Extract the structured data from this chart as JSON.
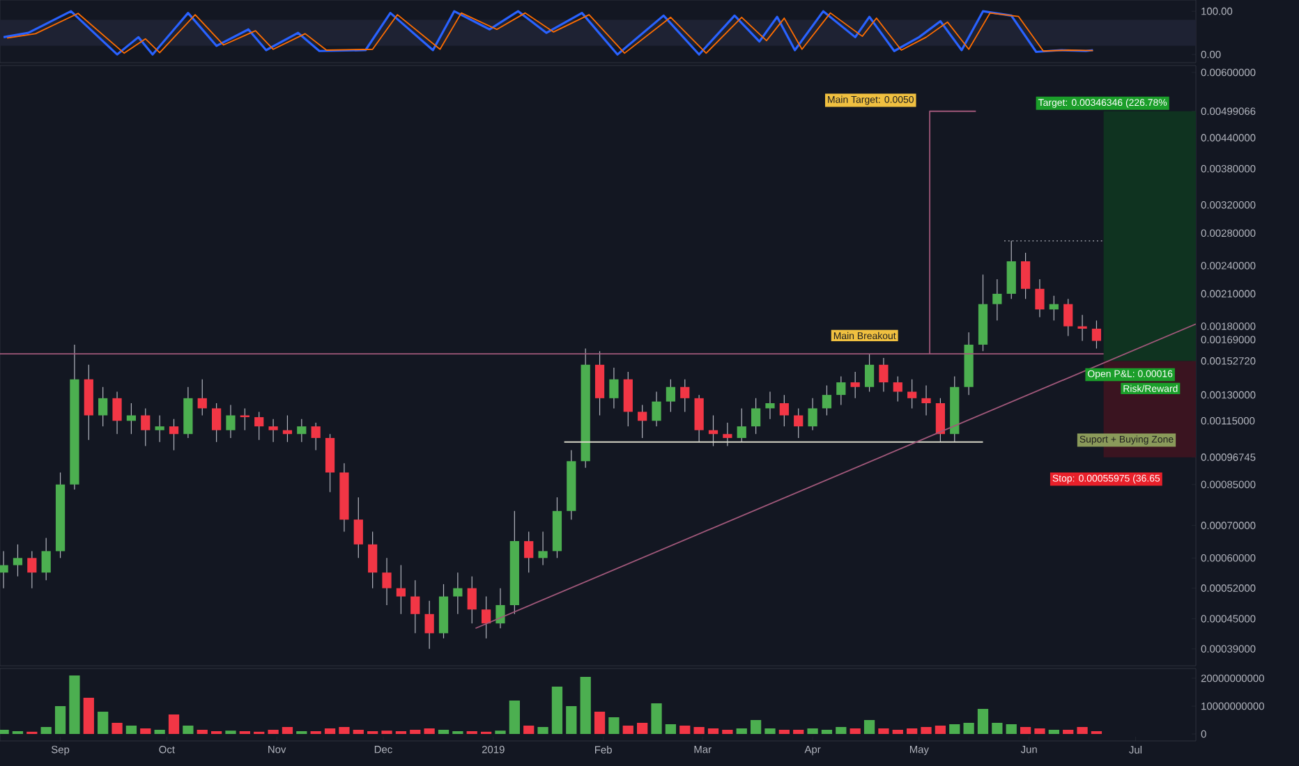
{
  "chart_data": [
    {
      "type": "line",
      "xlim": [
        "2018-08-15",
        "2019-07-18"
      ],
      "ylim": [
        -19,
        126
      ],
      "yticks": [
        {
          "value": 100,
          "label": "100.00"
        },
        {
          "value": 0,
          "label": "0.00"
        }
      ],
      "tick_labels": "y",
      "bands": [
        {
          "axis": "y",
          "from": 20,
          "to": 80,
          "color": "#1e2233"
        }
      ],
      "series": [
        {
          "color": "#2962ff",
          "x": [
            "2018-08-16",
            "2018-08-23",
            "2018-09-04",
            "2018-09-17",
            "2018-09-23",
            "2018-09-27",
            "2018-10-07",
            "2018-10-15",
            "2018-10-24",
            "2018-10-29",
            "2018-11-07",
            "2018-11-13",
            "2018-11-26",
            "2018-12-03",
            "2018-12-15",
            "2018-12-21",
            "2018-12-31",
            "2019-01-08",
            "2019-01-16",
            "2019-01-26",
            "2019-02-05",
            "2019-02-18",
            "2019-02-28",
            "2019-03-10",
            "2019-03-17",
            "2019-03-22",
            "2019-03-27",
            "2019-04-04",
            "2019-04-13",
            "2019-04-17",
            "2019-04-24",
            "2019-05-01",
            "2019-05-07",
            "2019-05-13",
            "2019-05-19",
            "2019-05-27",
            "2019-06-03",
            "2019-06-10",
            "2019-06-17",
            "2019-06-19"
          ],
          "values": [
            40,
            50,
            100,
            0,
            40,
            0,
            96,
            20,
            58,
            10,
            50,
            8,
            10,
            96,
            10,
            100,
            58,
            100,
            50,
            96,
            0,
            90,
            0,
            90,
            30,
            87,
            10,
            100,
            40,
            87,
            8,
            40,
            77,
            10,
            100,
            90,
            6,
            10,
            8,
            10
          ]
        },
        {
          "color": "#ff6d00",
          "x": [
            "2018-08-17",
            "2018-08-25",
            "2018-09-06",
            "2018-09-19",
            "2018-09-25",
            "2018-09-29",
            "2018-10-09",
            "2018-10-17",
            "2018-10-26",
            "2018-10-31",
            "2018-11-09",
            "2018-11-15",
            "2018-11-28",
            "2018-12-05",
            "2018-12-17",
            "2018-12-23",
            "2019-01-02",
            "2019-01-10",
            "2019-01-18",
            "2019-01-28",
            "2019-02-07",
            "2019-02-20",
            "2019-03-02",
            "2019-03-12",
            "2019-03-19",
            "2019-03-24",
            "2019-03-29",
            "2019-04-06",
            "2019-04-15",
            "2019-04-19",
            "2019-04-26",
            "2019-05-03",
            "2019-05-09",
            "2019-05-15",
            "2019-05-21",
            "2019-05-29",
            "2019-06-05",
            "2019-06-12",
            "2019-06-19"
          ],
          "values": [
            38,
            48,
            95,
            3,
            36,
            4,
            92,
            22,
            55,
            12,
            48,
            10,
            12,
            92,
            12,
            96,
            58,
            96,
            52,
            92,
            3,
            86,
            3,
            86,
            32,
            84,
            12,
            96,
            42,
            84,
            10,
            40,
            75,
            12,
            96,
            88,
            8,
            10,
            9
          ]
        }
      ]
    },
    {
      "type": "candlestick",
      "log": true,
      "xlim": [
        "2018-08-15",
        "2019-07-18"
      ],
      "ylim": [
        0.00036,
        0.0062
      ],
      "tick_labels": "y",
      "yticks": [
        {
          "value": 0.006,
          "label": "0.00600000"
        },
        {
          "value": 0.00499066,
          "label": "0.00499066"
        },
        {
          "value": 0.0044,
          "label": "0.00440000"
        },
        {
          "value": 0.0038,
          "label": "0.00380000"
        },
        {
          "value": 0.0032,
          "label": "0.00320000"
        },
        {
          "value": 0.0028,
          "label": "0.00280000"
        },
        {
          "value": 0.0024,
          "label": "0.00240000"
        },
        {
          "value": 0.0021,
          "label": "0.00210000"
        },
        {
          "value": 0.0018,
          "label": "0.00180000"
        },
        {
          "value": 0.00169,
          "label": "0.00169000"
        },
        {
          "value": 0.0015272,
          "label": "0.00152720"
        },
        {
          "value": 0.0013,
          "label": "0.00130000"
        },
        {
          "value": 0.00115,
          "label": "0.00115000"
        },
        {
          "value": 0.00096745,
          "label": "0.00096745"
        },
        {
          "value": 0.00085,
          "label": "0.00085000"
        },
        {
          "value": 0.0007,
          "label": "0.00070000"
        },
        {
          "value": 0.0006,
          "label": "0.00060000"
        },
        {
          "value": 0.00052,
          "label": "0.00052000"
        },
        {
          "value": 0.00045,
          "label": "0.00045000"
        },
        {
          "value": 0.00039,
          "label": "0.00039000"
        }
      ],
      "x": [
        "2018-08-16",
        "2018-08-20",
        "2018-08-24",
        "2018-08-28",
        "2018-09-01",
        "2018-09-05",
        "2018-09-09",
        "2018-09-13",
        "2018-09-17",
        "2018-09-21",
        "2018-09-25",
        "2018-09-29",
        "2018-10-03",
        "2018-10-07",
        "2018-10-11",
        "2018-10-15",
        "2018-10-19",
        "2018-10-23",
        "2018-10-27",
        "2018-10-31",
        "2018-11-04",
        "2018-11-08",
        "2018-11-12",
        "2018-11-16",
        "2018-11-20",
        "2018-11-24",
        "2018-11-28",
        "2018-12-02",
        "2018-12-06",
        "2018-12-10",
        "2018-12-14",
        "2018-12-18",
        "2018-12-22",
        "2018-12-26",
        "2018-12-30",
        "2019-01-03",
        "2019-01-07",
        "2019-01-11",
        "2019-01-15",
        "2019-01-19",
        "2019-01-23",
        "2019-01-27",
        "2019-01-31",
        "2019-02-04",
        "2019-02-08",
        "2019-02-12",
        "2019-02-16",
        "2019-02-20",
        "2019-02-24",
        "2019-02-28",
        "2019-03-04",
        "2019-03-08",
        "2019-03-12",
        "2019-03-16",
        "2019-03-20",
        "2019-03-24",
        "2019-03-28",
        "2019-04-01",
        "2019-04-05",
        "2019-04-09",
        "2019-04-13",
        "2019-04-17",
        "2019-04-21",
        "2019-04-25",
        "2019-04-29",
        "2019-05-03",
        "2019-05-07",
        "2019-05-11",
        "2019-05-15",
        "2019-05-19",
        "2019-05-23",
        "2019-05-27",
        "2019-05-31",
        "2019-06-04",
        "2019-06-08",
        "2019-06-12",
        "2019-06-16",
        "2019-06-20"
      ],
      "ohlc": [
        [
          0.00056,
          0.00062,
          0.00052,
          0.00058
        ],
        [
          0.00058,
          0.00064,
          0.00055,
          0.0006
        ],
        [
          0.0006,
          0.00062,
          0.00052,
          0.00056
        ],
        [
          0.00056,
          0.00066,
          0.00054,
          0.00062
        ],
        [
          0.00062,
          0.0009,
          0.0006,
          0.00085
        ],
        [
          0.00085,
          0.00165,
          0.00083,
          0.0014
        ],
        [
          0.0014,
          0.0015,
          0.00105,
          0.00118
        ],
        [
          0.00118,
          0.00135,
          0.00112,
          0.00128
        ],
        [
          0.00128,
          0.00132,
          0.00108,
          0.00115
        ],
        [
          0.00115,
          0.00125,
          0.00108,
          0.00118
        ],
        [
          0.00118,
          0.00122,
          0.00102,
          0.0011
        ],
        [
          0.0011,
          0.00118,
          0.00104,
          0.00112
        ],
        [
          0.00112,
          0.00116,
          0.001,
          0.00108
        ],
        [
          0.00108,
          0.00135,
          0.00106,
          0.00128
        ],
        [
          0.00128,
          0.0014,
          0.00118,
          0.00122
        ],
        [
          0.00122,
          0.00125,
          0.00104,
          0.0011
        ],
        [
          0.0011,
          0.00124,
          0.00106,
          0.00118
        ],
        [
          0.00118,
          0.00122,
          0.0011,
          0.00117
        ],
        [
          0.00117,
          0.0012,
          0.00105,
          0.00112
        ],
        [
          0.00112,
          0.00116,
          0.00104,
          0.0011
        ],
        [
          0.0011,
          0.00118,
          0.00104,
          0.00108
        ],
        [
          0.00108,
          0.00116,
          0.00104,
          0.00112
        ],
        [
          0.00112,
          0.00114,
          0.001,
          0.00106
        ],
        [
          0.00106,
          0.00108,
          0.00082,
          0.0009
        ],
        [
          0.0009,
          0.00094,
          0.00068,
          0.00072
        ],
        [
          0.00072,
          0.0008,
          0.0006,
          0.00064
        ],
        [
          0.00064,
          0.00068,
          0.00052,
          0.00056
        ],
        [
          0.00056,
          0.0006,
          0.00048,
          0.00052
        ],
        [
          0.00052,
          0.00058,
          0.00046,
          0.0005
        ],
        [
          0.0005,
          0.00054,
          0.00042,
          0.00046
        ],
        [
          0.00046,
          0.00049,
          0.00039,
          0.00042
        ],
        [
          0.00042,
          0.00053,
          0.00041,
          0.0005
        ],
        [
          0.0005,
          0.00056,
          0.00046,
          0.00052
        ],
        [
          0.00052,
          0.00055,
          0.00044,
          0.00047
        ],
        [
          0.00047,
          0.0005,
          0.00041,
          0.00044
        ],
        [
          0.00044,
          0.00052,
          0.00043,
          0.00048
        ],
        [
          0.00048,
          0.00075,
          0.00046,
          0.00065
        ],
        [
          0.00065,
          0.00068,
          0.00056,
          0.0006
        ],
        [
          0.0006,
          0.00068,
          0.00058,
          0.00062
        ],
        [
          0.00062,
          0.0008,
          0.0006,
          0.00075
        ],
        [
          0.00075,
          0.001,
          0.00072,
          0.00095
        ],
        [
          0.00095,
          0.00162,
          0.00092,
          0.0015
        ],
        [
          0.0015,
          0.0016,
          0.00118,
          0.00128
        ],
        [
          0.00128,
          0.00148,
          0.00122,
          0.0014
        ],
        [
          0.0014,
          0.00145,
          0.00112,
          0.0012
        ],
        [
          0.0012,
          0.00124,
          0.00106,
          0.00115
        ],
        [
          0.00115,
          0.00132,
          0.00112,
          0.00126
        ],
        [
          0.00126,
          0.0014,
          0.0012,
          0.00135
        ],
        [
          0.00135,
          0.0014,
          0.0012,
          0.00128
        ],
        [
          0.00128,
          0.0013,
          0.00104,
          0.0011
        ],
        [
          0.0011,
          0.00118,
          0.00102,
          0.00108
        ],
        [
          0.00108,
          0.00114,
          0.00102,
          0.00106
        ],
        [
          0.00106,
          0.00122,
          0.00104,
          0.00112
        ],
        [
          0.00112,
          0.00128,
          0.00108,
          0.00122
        ],
        [
          0.00122,
          0.00132,
          0.00116,
          0.00125
        ],
        [
          0.00125,
          0.0013,
          0.00112,
          0.00118
        ],
        [
          0.00118,
          0.00122,
          0.00106,
          0.00112
        ],
        [
          0.00112,
          0.00128,
          0.0011,
          0.00122
        ],
        [
          0.00122,
          0.00136,
          0.00118,
          0.0013
        ],
        [
          0.0013,
          0.00142,
          0.00124,
          0.00138
        ],
        [
          0.00138,
          0.00145,
          0.00128,
          0.00135
        ],
        [
          0.00135,
          0.00158,
          0.00132,
          0.0015
        ],
        [
          0.0015,
          0.00155,
          0.00132,
          0.00138
        ],
        [
          0.00138,
          0.00142,
          0.00126,
          0.00132
        ],
        [
          0.00132,
          0.0014,
          0.00122,
          0.00128
        ],
        [
          0.00128,
          0.00136,
          0.00118,
          0.00125
        ],
        [
          0.00125,
          0.00128,
          0.00104,
          0.00108
        ],
        [
          0.00108,
          0.00142,
          0.00104,
          0.00135
        ],
        [
          0.00135,
          0.00175,
          0.0013,
          0.00165
        ],
        [
          0.00165,
          0.0023,
          0.0016,
          0.002
        ],
        [
          0.002,
          0.00225,
          0.00185,
          0.0021
        ],
        [
          0.0021,
          0.0027,
          0.00205,
          0.00245
        ],
        [
          0.00245,
          0.00255,
          0.00205,
          0.00215
        ],
        [
          0.00215,
          0.00225,
          0.00188,
          0.00195
        ],
        [
          0.00195,
          0.00208,
          0.00185,
          0.002
        ],
        [
          0.002,
          0.00205,
          0.00172,
          0.0018
        ],
        [
          0.0018,
          0.0019,
          0.00168,
          0.00178
        ],
        [
          0.00178,
          0.00185,
          0.00162,
          0.00168
        ]
      ],
      "series": [
        {
          "type": "line",
          "color": "#a0587a",
          "x": [
            "2018-08-15",
            "2019-06-22"
          ],
          "values": [
            0.00158,
            0.00158
          ]
        },
        {
          "type": "line",
          "color": "#d8d8c8",
          "x": [
            "2019-01-21",
            "2019-05-19"
          ],
          "values": [
            0.00104,
            0.00104
          ]
        },
        {
          "type": "line",
          "color": "#a0587a",
          "x": [
            "2018-12-27",
            "2019-07-18"
          ],
          "values": [
            0.00043,
            0.00182
          ]
        },
        {
          "type": "line",
          "color": "#a0587a",
          "x": [
            "2019-05-04",
            "2019-05-04",
            "2019-05-17"
          ],
          "values": [
            0.00158,
            0.00499,
            0.00499
          ]
        },
        {
          "type": "line",
          "color": "#8a8d96",
          "line_style": "dotted",
          "x": [
            "2019-05-25",
            "2019-06-22"
          ],
          "values": [
            0.0027,
            0.0027
          ]
        }
      ],
      "bands": [
        {
          "axis": "y",
          "from": 0.0015272,
          "to": 0.00499066,
          "color": "#0f3320"
        },
        {
          "axis": "y",
          "from": 0.00096745,
          "to": 0.0015272,
          "color": "#3a1420"
        }
      ],
      "annotations": [
        "Main Target: 0.0050",
        "Main Breakout",
        "Target: 0.00346346 (226.78%",
        "Open P&L: 0.00016",
        "Risk/Reward",
        "Suport + Buying Zone",
        "Stop: 0.00055975 (36.65"
      ]
    },
    {
      "type": "bar",
      "xlim": [
        "2018-08-15",
        "2019-07-18"
      ],
      "ylim": [
        -2500000000,
        23500000000
      ],
      "yticks": [
        20000000000,
        10000000000,
        0
      ],
      "xticks": [
        {
          "value": "2018-09-01",
          "label": "Sep"
        },
        {
          "value": "2018-10-01",
          "label": "Oct"
        },
        {
          "value": "2018-11-01",
          "label": "Nov"
        },
        {
          "value": "2018-12-01",
          "label": "Dec"
        },
        {
          "value": "2019-01-01",
          "label": "2019"
        },
        {
          "value": "2019-02-01",
          "label": "Feb"
        },
        {
          "value": "2019-03-01",
          "label": "Mar"
        },
        {
          "value": "2019-04-01",
          "label": "Apr"
        },
        {
          "value": "2019-05-01",
          "label": "May"
        },
        {
          "value": "2019-06-01",
          "label": "Jun"
        },
        {
          "value": "2019-07-01",
          "label": "Jul"
        }
      ],
      "x": [
        "2018-08-16",
        "2018-08-20",
        "2018-08-24",
        "2018-08-28",
        "2018-09-01",
        "2018-09-05",
        "2018-09-09",
        "2018-09-13",
        "2018-09-17",
        "2018-09-21",
        "2018-09-25",
        "2018-09-29",
        "2018-10-03",
        "2018-10-07",
        "2018-10-11",
        "2018-10-15",
        "2018-10-19",
        "2018-10-23",
        "2018-10-27",
        "2018-10-31",
        "2018-11-04",
        "2018-11-08",
        "2018-11-12",
        "2018-11-16",
        "2018-11-20",
        "2018-11-24",
        "2018-11-28",
        "2018-12-02",
        "2018-12-06",
        "2018-12-10",
        "2018-12-14",
        "2018-12-18",
        "2018-12-22",
        "2018-12-26",
        "2018-12-30",
        "2019-01-03",
        "2019-01-07",
        "2019-01-11",
        "2019-01-15",
        "2019-01-19",
        "2019-01-23",
        "2019-01-27",
        "2019-01-31",
        "2019-02-04",
        "2019-02-08",
        "2019-02-12",
        "2019-02-16",
        "2019-02-20",
        "2019-02-24",
        "2019-02-28",
        "2019-03-04",
        "2019-03-08",
        "2019-03-12",
        "2019-03-16",
        "2019-03-20",
        "2019-03-24",
        "2019-03-28",
        "2019-04-01",
        "2019-04-05",
        "2019-04-09",
        "2019-04-13",
        "2019-04-17",
        "2019-04-21",
        "2019-04-25",
        "2019-04-29",
        "2019-05-03",
        "2019-05-07",
        "2019-05-11",
        "2019-05-15",
        "2019-05-19",
        "2019-05-23",
        "2019-05-27",
        "2019-05-31",
        "2019-06-04",
        "2019-06-08",
        "2019-06-12",
        "2019-06-16",
        "2019-06-20"
      ],
      "values": [
        1500000000,
        1000000000,
        800000000,
        2500000000,
        10000000000,
        21000000000,
        13000000000,
        8000000000,
        4000000000,
        3000000000,
        2000000000,
        1500000000,
        7000000000,
        3000000000,
        1500000000,
        1000000000,
        1200000000,
        1000000000,
        800000000,
        1500000000,
        2500000000,
        1000000000,
        1000000000,
        2000000000,
        2500000000,
        1500000000,
        1000000000,
        1200000000,
        1000000000,
        1500000000,
        2000000000,
        1500000000,
        1000000000,
        1000000000,
        800000000,
        1200000000,
        12000000000,
        3000000000,
        2500000000,
        17000000000,
        10000000000,
        20500000000,
        8000000000,
        6000000000,
        3000000000,
        4000000000,
        11000000000,
        3500000000,
        3000000000,
        2500000000,
        2000000000,
        1500000000,
        2000000000,
        5000000000,
        2000000000,
        1500000000,
        1500000000,
        2000000000,
        1500000000,
        2500000000,
        2000000000,
        5000000000,
        2000000000,
        1500000000,
        2000000000,
        2500000000,
        3000000000,
        3500000000,
        4000000000,
        9000000000,
        4000000000,
        3500000000,
        2500000000,
        2000000000,
        1500000000,
        1500000000,
        2500000000,
        1000000000
      ],
      "colors": [
        "#4caf50",
        "#4caf50",
        "#f23645",
        "#4caf50",
        "#4caf50",
        "#4caf50",
        "#f23645",
        "#4caf50",
        "#f23645",
        "#4caf50",
        "#f23645",
        "#4caf50",
        "#f23645",
        "#4caf50",
        "#f23645",
        "#f23645",
        "#4caf50",
        "#f23645",
        "#f23645",
        "#f23645",
        "#f23645",
        "#4caf50",
        "#f23645",
        "#f23645",
        "#f23645",
        "#f23645",
        "#f23645",
        "#f23645",
        "#f23645",
        "#f23645",
        "#f23645",
        "#4caf50",
        "#4caf50",
        "#f23645",
        "#f23645",
        "#4caf50",
        "#4caf50",
        "#f23645",
        "#4caf50",
        "#4caf50",
        "#4caf50",
        "#4caf50",
        "#f23645",
        "#4caf50",
        "#f23645",
        "#f23645",
        "#4caf50",
        "#4caf50",
        "#f23645",
        "#f23645",
        "#f23645",
        "#f23645",
        "#4caf50",
        "#4caf50",
        "#4caf50",
        "#f23645",
        "#f23645",
        "#4caf50",
        "#4caf50",
        "#4caf50",
        "#f23645",
        "#4caf50",
        "#f23645",
        "#f23645",
        "#f23645",
        "#f23645",
        "#f23645",
        "#4caf50",
        "#4caf50",
        "#4caf50",
        "#4caf50",
        "#4caf50",
        "#f23645",
        "#f23645",
        "#4caf50",
        "#f23645",
        "#f23645",
        "#f23645"
      ]
    }
  ]
}
